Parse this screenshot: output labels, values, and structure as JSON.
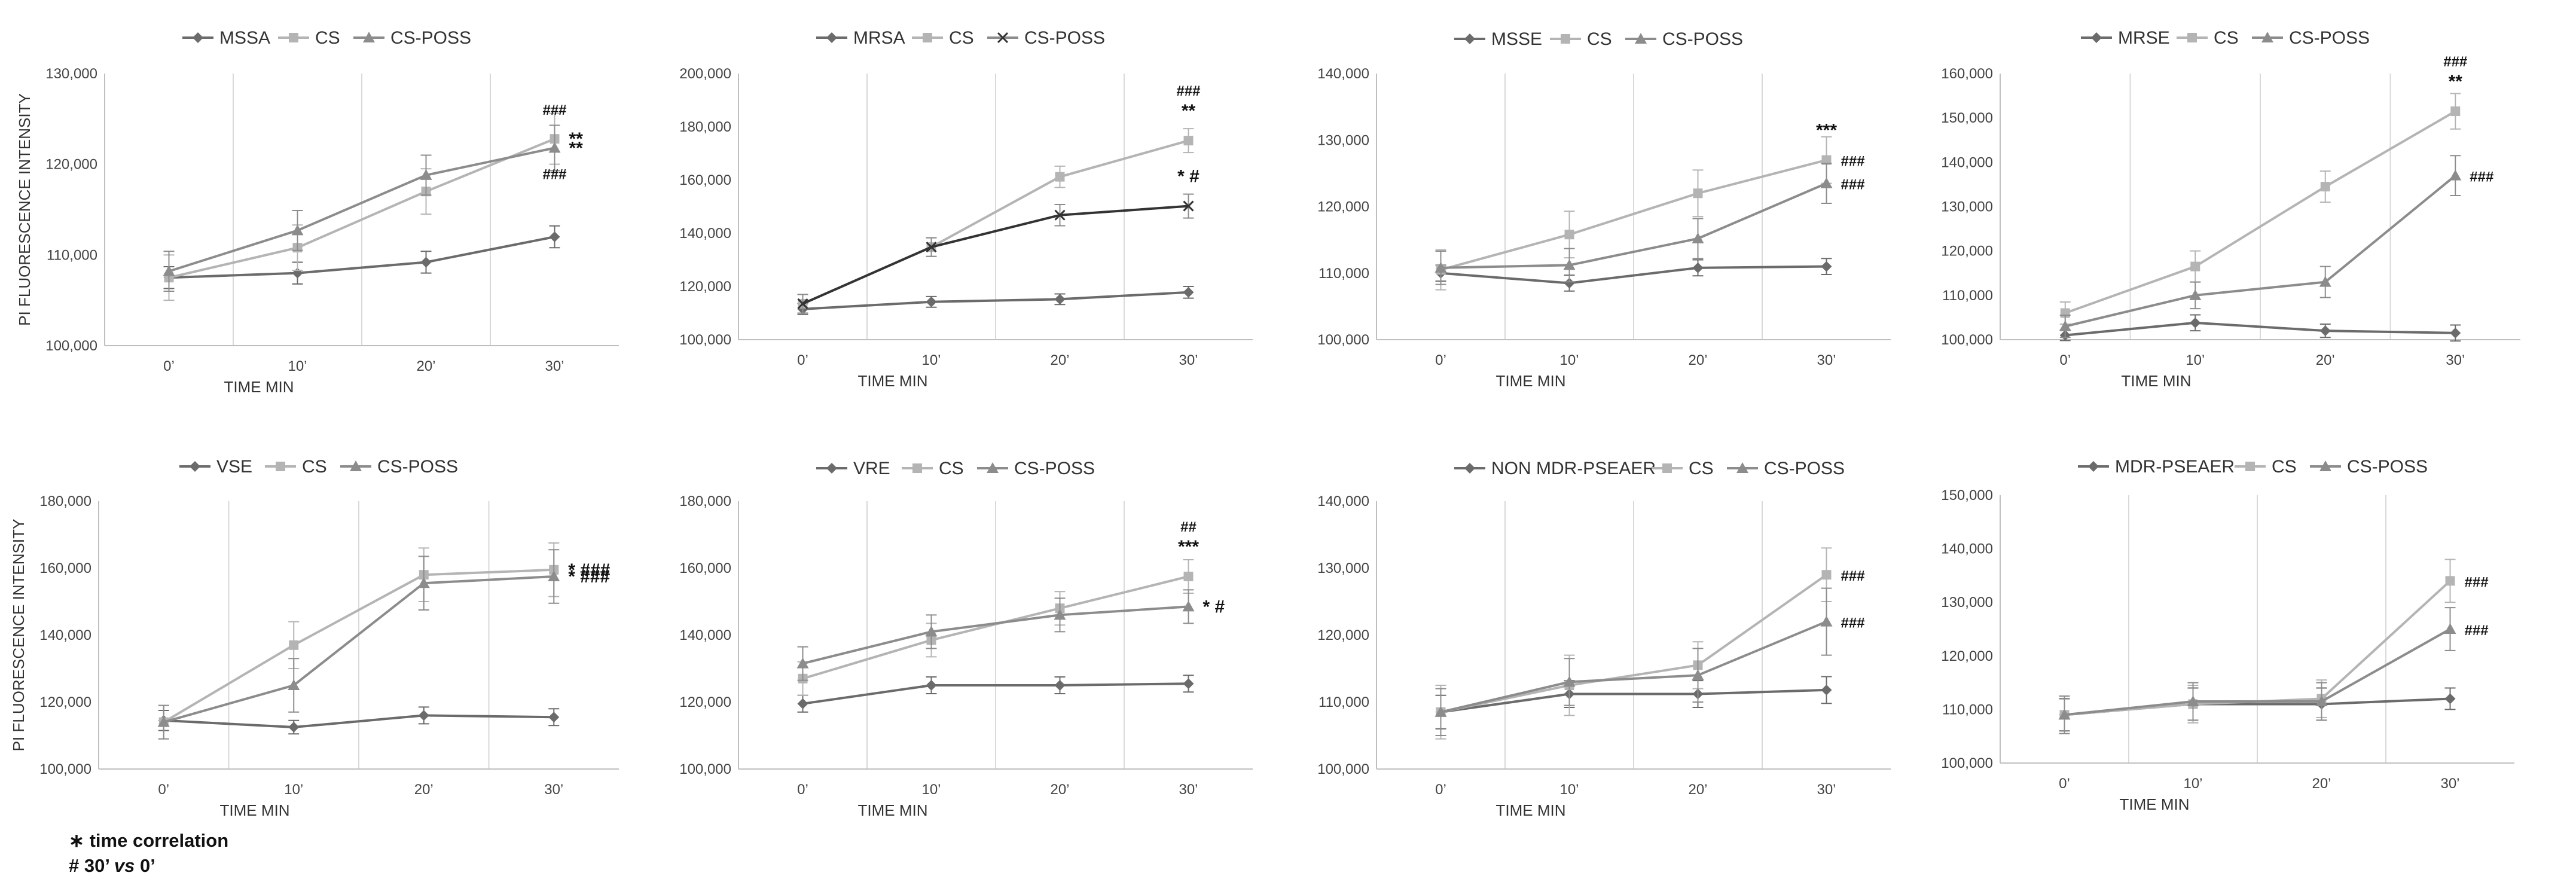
{
  "colors": {
    "bacteria": "#6b6b6b",
    "cs": "#b4b4b4",
    "cs_poss": "#8c8c8c",
    "grid": "#d9d9d9",
    "axis": "#bfbfbf"
  },
  "footnote": {
    "star_symbol": "∗",
    "star_text": "time correlation",
    "hash_symbol": "#",
    "hash_prefix": "30’",
    "hash_vs": "vs",
    "hash_suffix": "0’"
  },
  "chart_data": [
    {
      "type": "line",
      "title": "",
      "ylabel": "PI FLUORESCENCE INTENSITY",
      "xlabel": "TIME MIN",
      "categories": [
        "0’",
        "10’",
        "20’",
        "30’"
      ],
      "ylim": [
        100000,
        130000
      ],
      "yticks": [
        "100,000",
        "110,000",
        "120,000",
        "130,000"
      ],
      "ytick_values": [
        100000,
        110000,
        120000,
        130000
      ],
      "series": [
        {
          "name": "MSSA",
          "marker": "diamond",
          "values": [
            107500,
            108000,
            109200,
            112000
          ],
          "errors": [
            1200,
            1200,
            1200,
            1200
          ]
        },
        {
          "name": "CS",
          "marker": "square",
          "values": [
            107500,
            110800,
            117000,
            122800
          ],
          "errors": [
            2500,
            2500,
            2500,
            2800
          ]
        },
        {
          "name": "CS-POSS",
          "marker": "triangle",
          "values": [
            108200,
            112700,
            118800,
            121800
          ],
          "errors": [
            2200,
            2200,
            2200,
            2500
          ]
        }
      ],
      "annotations": [
        {
          "text": "###",
          "series": "CS",
          "pos": "above"
        },
        {
          "text": "**",
          "series": "CS",
          "pos": "right"
        },
        {
          "text": "**",
          "series": "CS-POSS",
          "pos": "right"
        },
        {
          "text": "###",
          "series": "CS-POSS",
          "pos": "below"
        }
      ]
    },
    {
      "type": "line",
      "title": "",
      "ylabel": "",
      "xlabel": "TIME MIN",
      "categories": [
        "0’",
        "10’",
        "20’",
        "30’"
      ],
      "ylim": [
        100000,
        200000
      ],
      "yticks": [
        "100,000",
        "120,000",
        "140,000",
        "160,000",
        "180,000",
        "200,000"
      ],
      "ytick_values": [
        100000,
        120000,
        140000,
        160000,
        180000,
        200000
      ],
      "series": [
        {
          "name": "MRSA",
          "marker": "diamond",
          "values": [
            111500,
            114200,
            115200,
            117800
          ],
          "errors": [
            2000,
            2000,
            2000,
            2200
          ]
        },
        {
          "name": "CS",
          "marker": "square",
          "values": [
            113500,
            134800,
            161200,
            174800
          ],
          "errors": [
            3500,
            3500,
            4000,
            4500
          ]
        },
        {
          "name": "CS-POSS",
          "marker": "cross",
          "values": [
            113500,
            134800,
            146800,
            150200
          ],
          "errors": [
            3500,
            3500,
            4000,
            4500
          ]
        }
      ],
      "annotations": [
        {
          "text": "###",
          "series": "CS",
          "pos": "above2"
        },
        {
          "text": "**",
          "series": "CS",
          "pos": "above"
        },
        {
          "text": "* #",
          "series": "CS-POSS",
          "pos": "above"
        }
      ]
    },
    {
      "type": "line",
      "title": "",
      "ylabel": "",
      "xlabel": "TIME MIN",
      "categories": [
        "0’",
        "10’",
        "20’",
        "30’"
      ],
      "ylim": [
        100000,
        140000
      ],
      "yticks": [
        "100,000",
        "110,000",
        "120,000",
        "130,000",
        "140,000"
      ],
      "ytick_values": [
        100000,
        110000,
        120000,
        130000,
        140000
      ],
      "series": [
        {
          "name": "MSSE",
          "marker": "diamond",
          "values": [
            110000,
            108500,
            110800,
            111000
          ],
          "errors": [
            1200,
            1200,
            1200,
            1200
          ]
        },
        {
          "name": "CS",
          "marker": "square",
          "values": [
            110500,
            115800,
            122000,
            127000
          ],
          "errors": [
            3000,
            3500,
            3500,
            3500
          ]
        },
        {
          "name": "CS-POSS",
          "marker": "triangle",
          "values": [
            110800,
            111200,
            115200,
            123500
          ],
          "errors": [
            2500,
            2500,
            3000,
            3000
          ]
        }
      ],
      "annotations": [
        {
          "text": "***",
          "series": "CS",
          "pos": "above"
        },
        {
          "text": "###",
          "series": "CS",
          "pos": "right"
        },
        {
          "text": "###",
          "series": "CS-POSS",
          "pos": "right"
        }
      ]
    },
    {
      "type": "line",
      "title": "",
      "ylabel": "",
      "xlabel": "TIME MIN",
      "categories": [
        "0’",
        "10’",
        "20’",
        "30’"
      ],
      "ylim": [
        100000,
        160000
      ],
      "yticks": [
        "100,000",
        "110,000",
        "120,000",
        "130,000",
        "140,000",
        "150,000",
        "160,000"
      ],
      "ytick_values": [
        100000,
        110000,
        120000,
        130000,
        140000,
        150000,
        160000
      ],
      "series": [
        {
          "name": "MRSE",
          "marker": "diamond",
          "values": [
            101000,
            103800,
            102000,
            101500
          ],
          "errors": [
            1200,
            1800,
            1500,
            1800
          ]
        },
        {
          "name": "CS",
          "marker": "square",
          "values": [
            106000,
            116500,
            134500,
            151500
          ],
          "errors": [
            2500,
            3500,
            3500,
            4000
          ]
        },
        {
          "name": "CS-POSS",
          "marker": "triangle",
          "values": [
            103000,
            110000,
            113000,
            137000
          ],
          "errors": [
            2500,
            3000,
            3500,
            4500
          ]
        }
      ],
      "annotations": [
        {
          "text": "###",
          "series": "CS",
          "pos": "above2"
        },
        {
          "text": "**",
          "series": "CS",
          "pos": "above"
        },
        {
          "text": "###",
          "series": "CS-POSS",
          "pos": "right"
        }
      ]
    },
    {
      "type": "line",
      "title": "",
      "ylabel": "PI FLUORESCENCE INTENSITY",
      "xlabel": "TIME MIN",
      "categories": [
        "0’",
        "10’",
        "20’",
        "30’"
      ],
      "ylim": [
        100000,
        180000
      ],
      "yticks": [
        "100,000",
        "120,000",
        "140,000",
        "160,000",
        "180,000"
      ],
      "ytick_values": [
        100000,
        120000,
        140000,
        160000,
        180000
      ],
      "series": [
        {
          "name": "VSE",
          "marker": "diamond",
          "values": [
            114500,
            112500,
            116000,
            115500
          ],
          "errors": [
            3000,
            2000,
            2500,
            2500
          ]
        },
        {
          "name": "CS",
          "marker": "square",
          "values": [
            114000,
            137000,
            158000,
            159500
          ],
          "errors": [
            5000,
            7000,
            8000,
            8000
          ]
        },
        {
          "name": "CS-POSS",
          "marker": "triangle",
          "values": [
            114000,
            125000,
            155500,
            157500
          ],
          "errors": [
            5000,
            8000,
            8000,
            8000
          ]
        }
      ],
      "annotations": [
        {
          "text": "* ###",
          "series": "CS",
          "pos": "right"
        },
        {
          "text": "* ###",
          "series": "CS-POSS",
          "pos": "right"
        }
      ]
    },
    {
      "type": "line",
      "title": "",
      "ylabel": "",
      "xlabel": "TIME MIN",
      "categories": [
        "0’",
        "10’",
        "20’",
        "30’"
      ],
      "ylim": [
        100000,
        180000
      ],
      "yticks": [
        "100,000",
        "120,000",
        "140,000",
        "160,000",
        "180,000"
      ],
      "ytick_values": [
        100000,
        120000,
        140000,
        160000,
        180000
      ],
      "series": [
        {
          "name": "VRE",
          "marker": "diamond",
          "values": [
            119500,
            125000,
            125000,
            125500
          ],
          "errors": [
            2500,
            2500,
            2500,
            2500
          ]
        },
        {
          "name": "CS",
          "marker": "square",
          "values": [
            127000,
            138500,
            148000,
            157500
          ],
          "errors": [
            5000,
            5000,
            5000,
            5000
          ]
        },
        {
          "name": "CS-POSS",
          "marker": "triangle",
          "values": [
            131500,
            141000,
            146000,
            148500
          ],
          "errors": [
            5000,
            5000,
            5000,
            5000
          ]
        }
      ],
      "annotations": [
        {
          "text": "##",
          "series": "CS",
          "pos": "above2"
        },
        {
          "text": "***",
          "series": "CS",
          "pos": "above"
        },
        {
          "text": "* #",
          "series": "CS-POSS",
          "pos": "right"
        }
      ]
    },
    {
      "type": "line",
      "title": "",
      "ylabel": "",
      "xlabel": "TIME MIN",
      "categories": [
        "0’",
        "10’",
        "20’",
        "30’"
      ],
      "ylim": [
        100000,
        140000
      ],
      "yticks": [
        "100,000",
        "110,000",
        "120,000",
        "130,000",
        "140,000"
      ],
      "ytick_values": [
        100000,
        110000,
        120000,
        130000,
        140000
      ],
      "series": [
        {
          "name": "NON MDR-PSEAER",
          "marker": "diamond",
          "values": [
            108500,
            111200,
            111200,
            111800
          ],
          "errors": [
            2500,
            2000,
            2000,
            2000
          ]
        },
        {
          "name": "CS",
          "marker": "square",
          "values": [
            108500,
            112500,
            115500,
            129000
          ],
          "errors": [
            4000,
            4500,
            3500,
            4000
          ]
        },
        {
          "name": "CS-POSS",
          "marker": "triangle",
          "values": [
            108500,
            113000,
            114000,
            122000
          ],
          "errors": [
            3500,
            3500,
            4000,
            5000
          ]
        }
      ],
      "annotations": [
        {
          "text": "###",
          "series": "CS",
          "pos": "right"
        },
        {
          "text": "###",
          "series": "CS-POSS",
          "pos": "right"
        }
      ]
    },
    {
      "type": "line",
      "title": "",
      "ylabel": "",
      "xlabel": "TIME MIN",
      "categories": [
        "0’",
        "10’",
        "20’",
        "30’"
      ],
      "ylim": [
        100000,
        150000
      ],
      "yticks": [
        "100,000",
        "110,000",
        "120,000",
        "130,000",
        "140,000",
        "150,000"
      ],
      "ytick_values": [
        100000,
        110000,
        120000,
        130000,
        140000,
        150000
      ],
      "series": [
        {
          "name": "MDR-PSEAER",
          "marker": "diamond",
          "values": [
            109000,
            111000,
            111000,
            112000
          ],
          "errors": [
            3000,
            3000,
            3000,
            2000
          ]
        },
        {
          "name": "CS",
          "marker": "square",
          "values": [
            109000,
            111000,
            112000,
            134000
          ],
          "errors": [
            3500,
            3500,
            3500,
            4000
          ]
        },
        {
          "name": "CS-POSS",
          "marker": "triangle",
          "values": [
            109000,
            111500,
            111500,
            125000
          ],
          "errors": [
            3500,
            3500,
            3500,
            4000
          ]
        }
      ],
      "annotations": [
        {
          "text": "###",
          "series": "CS",
          "pos": "right"
        },
        {
          "text": "###",
          "series": "CS-POSS",
          "pos": "right"
        }
      ]
    }
  ]
}
